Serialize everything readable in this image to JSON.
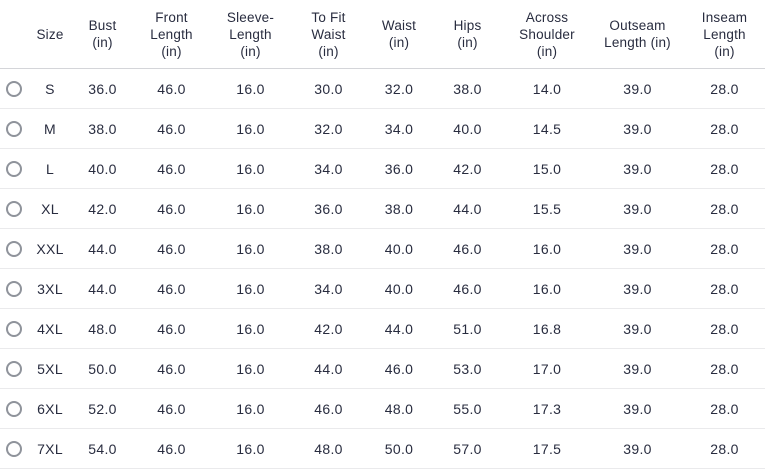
{
  "table": {
    "headers": [
      "Size",
      "Bust\n(in)",
      "Front\nLength\n(in)",
      "Sleeve-\nLength\n(in)",
      "To Fit\nWaist\n(in)",
      "Waist\n(in)",
      "Hips\n(in)",
      "Across\nShoulder\n(in)",
      "Outseam\nLength (in)",
      "Inseam\nLength\n(in)"
    ],
    "rows": [
      {
        "size": "S",
        "values": [
          "36.0",
          "46.0",
          "16.0",
          "30.0",
          "32.0",
          "38.0",
          "14.0",
          "39.0",
          "28.0"
        ]
      },
      {
        "size": "M",
        "values": [
          "38.0",
          "46.0",
          "16.0",
          "32.0",
          "34.0",
          "40.0",
          "14.5",
          "39.0",
          "28.0"
        ]
      },
      {
        "size": "L",
        "values": [
          "40.0",
          "46.0",
          "16.0",
          "34.0",
          "36.0",
          "42.0",
          "15.0",
          "39.0",
          "28.0"
        ]
      },
      {
        "size": "XL",
        "values": [
          "42.0",
          "46.0",
          "16.0",
          "36.0",
          "38.0",
          "44.0",
          "15.5",
          "39.0",
          "28.0"
        ]
      },
      {
        "size": "XXL",
        "values": [
          "44.0",
          "46.0",
          "16.0",
          "38.0",
          "40.0",
          "46.0",
          "16.0",
          "39.0",
          "28.0"
        ]
      },
      {
        "size": "3XL",
        "values": [
          "44.0",
          "46.0",
          "16.0",
          "34.0",
          "40.0",
          "46.0",
          "16.0",
          "39.0",
          "28.0"
        ]
      },
      {
        "size": "4XL",
        "values": [
          "48.0",
          "46.0",
          "16.0",
          "42.0",
          "44.0",
          "51.0",
          "16.8",
          "39.0",
          "28.0"
        ]
      },
      {
        "size": "5XL",
        "values": [
          "50.0",
          "46.0",
          "16.0",
          "44.0",
          "46.0",
          "53.0",
          "17.0",
          "39.0",
          "28.0"
        ]
      },
      {
        "size": "6XL",
        "values": [
          "52.0",
          "46.0",
          "16.0",
          "46.0",
          "48.0",
          "55.0",
          "17.3",
          "39.0",
          "28.0"
        ]
      },
      {
        "size": "7XL",
        "values": [
          "54.0",
          "46.0",
          "16.0",
          "48.0",
          "50.0",
          "57.0",
          "17.5",
          "39.0",
          "28.0"
        ]
      }
    ],
    "colors": {
      "text": "#282c3f",
      "header_divider": "#d4d5d9",
      "row_divider": "#eaeaec",
      "radio_border": "#8f939b"
    }
  }
}
